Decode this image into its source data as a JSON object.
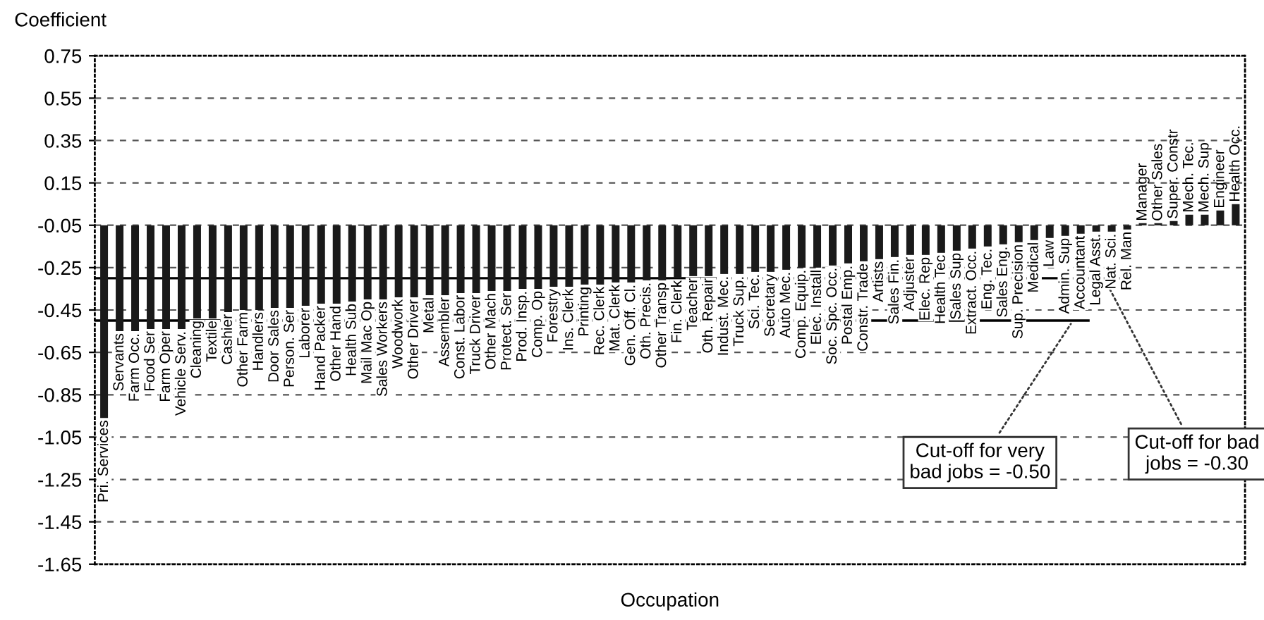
{
  "chart_data": {
    "type": "bar",
    "ylabel": "Coefficient",
    "xlabel": "Occupation",
    "categories": [
      "Pri. Services",
      "Servants",
      "Farm Occ.",
      "Food Ser",
      "Farm Oper",
      "Vehicle Serv.",
      "Cleaning",
      "Textile",
      "Cashier",
      "Other Farm",
      "Handlers",
      "Door Sales",
      "Person. Ser",
      "Laborer",
      "Hand Packer",
      "Other Hand",
      "Health Sub",
      "Mail Mac Op",
      "Sales Workers",
      "Woodwork",
      "Other Driver",
      "Metal",
      "Assembler",
      "Const. Labor",
      "Truck Driver",
      "Other Mach",
      "Protect. Ser",
      "Prod. Insp.",
      "Comp. Op",
      "Forestry",
      "Ins. Clerk",
      "Printing",
      "Rec. Clerk",
      "Mat. Clerk",
      "Gen. Off. Cl.",
      "Oth. Precis.",
      "Other Transp",
      "Fin. Clerk",
      "Teacher",
      "Oth. Repair",
      "Indust. Mec.",
      "Truck Sup.",
      "Sci. Tec.",
      "Secretary",
      "Auto Mec.",
      "Comp. Equip.",
      "Elec. Install",
      "Soc. Spc. Occ.",
      "Postal Emp.",
      "Constr. Trade",
      "Artists",
      "Sales Fin.",
      "Adjuster",
      "Elec. Rep",
      "Health Tec",
      "Sales Sup",
      "Extract. Occ.",
      "Eng. Tec.",
      "Sales Eng.",
      "Sup. Precision",
      "Medical",
      "Law",
      "Admin. Sup",
      "Accountant",
      "Legal Asst.",
      "Nat. Sci.",
      "Rel. Man",
      "Manager",
      "Other Sales",
      "Super. Constr",
      "Mech. Tec.",
      "Mech. Sup",
      "Engineer",
      "Health Occ."
    ],
    "base": [
      -0.05,
      -0.05,
      -0.05,
      -0.05,
      -0.05,
      -0.05,
      -0.05,
      -0.05,
      -0.05,
      -0.05,
      -0.05,
      -0.05,
      -0.05,
      -0.05,
      -0.05,
      -0.05,
      -0.05,
      -0.05,
      -0.05,
      -0.05,
      -0.05,
      -0.05,
      -0.05,
      -0.05,
      -0.05,
      -0.05,
      -0.05,
      -0.05,
      -0.05,
      -0.05,
      -0.05,
      -0.05,
      -0.05,
      -0.05,
      -0.05,
      -0.05,
      -0.05,
      -0.05,
      -0.05,
      -0.05,
      -0.05,
      -0.05,
      -0.05,
      -0.05,
      -0.05,
      -0.05,
      -0.05,
      -0.05,
      -0.05,
      -0.05,
      -0.05,
      -0.05,
      -0.05,
      -0.05,
      -0.05,
      -0.05,
      -0.05,
      -0.05,
      -0.05,
      -0.05,
      -0.05,
      -0.05,
      -0.05,
      -0.05,
      -0.05,
      -0.05,
      -0.05,
      -0.05,
      -0.05,
      -0.05,
      -0.05,
      -0.05,
      -0.05,
      -0.05
    ],
    "values": [
      -0.91,
      -0.5,
      -0.5,
      -0.49,
      -0.49,
      -0.49,
      -0.44,
      -0.44,
      -0.41,
      -0.4,
      -0.4,
      -0.39,
      -0.39,
      -0.38,
      -0.37,
      -0.37,
      -0.36,
      -0.35,
      -0.35,
      -0.34,
      -0.34,
      -0.33,
      -0.33,
      -0.32,
      -0.32,
      -0.31,
      -0.31,
      -0.3,
      -0.3,
      -0.29,
      -0.29,
      -0.28,
      -0.28,
      -0.27,
      -0.27,
      -0.26,
      -0.26,
      -0.25,
      -0.24,
      -0.24,
      -0.23,
      -0.23,
      -0.22,
      -0.22,
      -0.21,
      -0.2,
      -0.2,
      -0.19,
      -0.18,
      -0.17,
      -0.16,
      -0.15,
      -0.14,
      -0.14,
      -0.13,
      -0.12,
      -0.11,
      -0.1,
      -0.09,
      -0.08,
      -0.07,
      -0.06,
      -0.05,
      -0.04,
      -0.03,
      -0.03,
      -0.02,
      0.01,
      0.01,
      0.02,
      0.05,
      0.05,
      0.07,
      0.1
    ],
    "color": "#1a1a1a",
    "ylim": [
      -1.65,
      0.75
    ],
    "yticks": [
      {
        "value": 0.75,
        "label": "0.75"
      },
      {
        "value": 0.55,
        "label": "0.55"
      },
      {
        "value": 0.35,
        "label": "0.35"
      },
      {
        "value": 0.15,
        "label": "0.15"
      },
      {
        "value": -0.05,
        "label": "-0.05"
      },
      {
        "value": -0.25,
        "label": "-0.25"
      },
      {
        "value": -0.45,
        "label": "-0.45"
      },
      {
        "value": -0.65,
        "label": "-0.65"
      },
      {
        "value": -0.85,
        "label": "-0.85"
      },
      {
        "value": -1.05,
        "label": "-1.05"
      },
      {
        "value": -1.25,
        "label": "-1.25"
      },
      {
        "value": -1.45,
        "label": "-1.45"
      },
      {
        "value": -1.65,
        "label": "-1.65"
      }
    ],
    "ref_lines": [
      {
        "axis": "y",
        "value": -0.3,
        "label": "Cut-off for bad\njobs = -0.30",
        "color": "#000000"
      },
      {
        "axis": "y",
        "value": -0.5,
        "label": "Cut-off for very\nbad jobs = -0.50",
        "color": "#000000"
      }
    ],
    "grid": "y",
    "line_style": "dashed"
  }
}
